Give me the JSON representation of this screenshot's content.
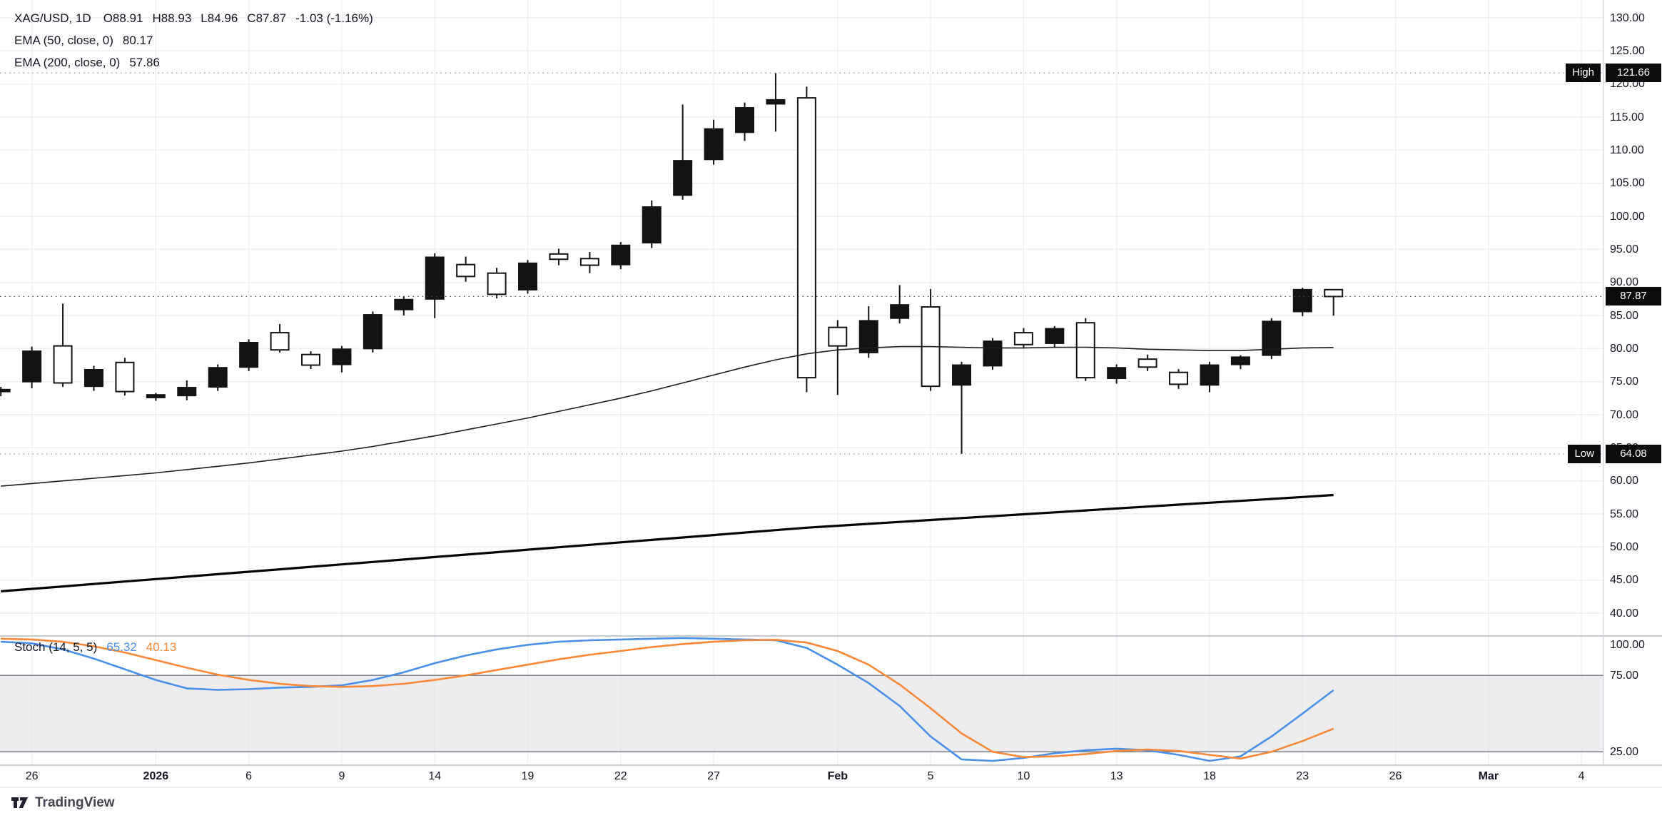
{
  "header": {
    "symbol": "XAG/USD, 1D",
    "ohlc": [
      "O88.91",
      "H88.93",
      "L84.96",
      "C87.87"
    ],
    "change": "-1.03 (-1.16%)",
    "ema50_label": "EMA (50, close, 0)",
    "ema50_value": "80.17",
    "ema200_label": "EMA (200, close, 0)",
    "ema200_value": "57.86"
  },
  "stoch_legend": {
    "label": "Stoch (14, 5, 5)",
    "k_value": "65.32",
    "d_value": "40.13"
  },
  "axis": {
    "price_ticks": [
      130,
      125,
      120,
      115,
      110,
      105,
      100,
      95,
      90,
      85,
      80,
      75,
      70,
      65,
      60,
      55,
      50,
      45,
      40
    ],
    "stoch_ticks": [
      100,
      75,
      25
    ],
    "time_ticks": [
      {
        "label": "26",
        "bar": 1
      },
      {
        "label": "2026",
        "bar": 5,
        "major": true
      },
      {
        "label": "6",
        "bar": 8
      },
      {
        "label": "9",
        "bar": 11
      },
      {
        "label": "14",
        "bar": 14
      },
      {
        "label": "19",
        "bar": 17
      },
      {
        "label": "22",
        "bar": 20
      },
      {
        "label": "27",
        "bar": 23
      },
      {
        "label": "Feb",
        "bar": 27,
        "major": true
      },
      {
        "label": "5",
        "bar": 30
      },
      {
        "label": "10",
        "bar": 33
      },
      {
        "label": "13",
        "bar": 36
      },
      {
        "label": "18",
        "bar": 39
      },
      {
        "label": "23",
        "bar": 42
      },
      {
        "label": "26",
        "bar": 45
      },
      {
        "label": "Mar",
        "bar": 48,
        "major": true
      },
      {
        "label": "4",
        "bar": 51
      }
    ],
    "high_badge": {
      "label": "High",
      "value": "121.66"
    },
    "low_badge": {
      "label": "Low",
      "value": "64.08"
    },
    "last_badge": {
      "value": "87.87"
    }
  },
  "footer": {
    "brand": "TradingView"
  },
  "chart_data": {
    "type": "candlestick",
    "symbol": "XAG/USD",
    "interval": "1D",
    "up_color": "#131313",
    "down_fill": "#ffffff",
    "levels": {
      "high": 121.66,
      "low": 64.08,
      "last": 87.87
    },
    "candles": [
      {
        "d": "Dec 25",
        "o": 73.5,
        "h": 74.2,
        "l": 72.8,
        "c": 73.8
      },
      {
        "d": "Dec 26",
        "o": 75.0,
        "h": 80.3,
        "l": 74.0,
        "c": 79.6
      },
      {
        "d": "Dec 29",
        "o": 80.4,
        "h": 86.8,
        "l": 74.2,
        "c": 74.8
      },
      {
        "d": "Dec 30",
        "o": 74.3,
        "h": 77.4,
        "l": 73.6,
        "c": 76.8
      },
      {
        "d": "Dec 31",
        "o": 77.9,
        "h": 78.6,
        "l": 72.9,
        "c": 73.5
      },
      {
        "d": "Jan 1",
        "o": 72.6,
        "h": 73.3,
        "l": 72.1,
        "c": 73.0
      },
      {
        "d": "Jan 2",
        "o": 72.9,
        "h": 75.2,
        "l": 72.2,
        "c": 74.1
      },
      {
        "d": "Jan 5",
        "o": 74.2,
        "h": 77.6,
        "l": 73.6,
        "c": 77.1
      },
      {
        "d": "Jan 6",
        "o": 77.2,
        "h": 81.4,
        "l": 76.6,
        "c": 80.9
      },
      {
        "d": "Jan 7",
        "o": 82.4,
        "h": 83.7,
        "l": 79.4,
        "c": 79.8
      },
      {
        "d": "Jan 8",
        "o": 79.1,
        "h": 79.6,
        "l": 76.9,
        "c": 77.5
      },
      {
        "d": "Jan 9",
        "o": 77.6,
        "h": 80.4,
        "l": 76.4,
        "c": 79.9
      },
      {
        "d": "Jan 12",
        "o": 80.0,
        "h": 85.6,
        "l": 79.4,
        "c": 85.1
      },
      {
        "d": "Jan 13",
        "o": 85.9,
        "h": 87.9,
        "l": 85.0,
        "c": 87.4
      },
      {
        "d": "Jan 14",
        "o": 87.5,
        "h": 94.4,
        "l": 84.6,
        "c": 93.8
      },
      {
        "d": "Jan 15",
        "o": 92.7,
        "h": 93.9,
        "l": 90.1,
        "c": 90.9
      },
      {
        "d": "Jan 16",
        "o": 91.4,
        "h": 92.2,
        "l": 87.6,
        "c": 88.2
      },
      {
        "d": "Jan 19",
        "o": 88.9,
        "h": 93.4,
        "l": 88.3,
        "c": 92.9
      },
      {
        "d": "Jan 20",
        "o": 94.3,
        "h": 95.1,
        "l": 92.6,
        "c": 93.5
      },
      {
        "d": "Jan 21",
        "o": 93.6,
        "h": 94.6,
        "l": 91.4,
        "c": 92.6
      },
      {
        "d": "Jan 22",
        "o": 92.7,
        "h": 96.1,
        "l": 92.0,
        "c": 95.6
      },
      {
        "d": "Jan 23",
        "o": 96.0,
        "h": 102.4,
        "l": 95.2,
        "c": 101.4
      },
      {
        "d": "Jan 26",
        "o": 103.2,
        "h": 116.9,
        "l": 102.5,
        "c": 108.4
      },
      {
        "d": "Jan 27",
        "o": 108.6,
        "h": 114.6,
        "l": 107.8,
        "c": 113.2
      },
      {
        "d": "Jan 28",
        "o": 112.7,
        "h": 117.2,
        "l": 111.4,
        "c": 116.4
      },
      {
        "d": "Jan 29",
        "o": 117.0,
        "h": 121.66,
        "l": 112.8,
        "c": 117.6
      },
      {
        "d": "Jan 30",
        "o": 117.9,
        "h": 119.6,
        "l": 73.4,
        "c": 75.6
      },
      {
        "d": "Feb 2",
        "o": 83.2,
        "h": 84.3,
        "l": 73.0,
        "c": 80.4
      },
      {
        "d": "Feb 3",
        "o": 79.4,
        "h": 86.4,
        "l": 78.6,
        "c": 84.2
      },
      {
        "d": "Feb 4",
        "o": 84.6,
        "h": 89.6,
        "l": 83.8,
        "c": 86.6
      },
      {
        "d": "Feb 5",
        "o": 86.3,
        "h": 89.0,
        "l": 73.6,
        "c": 74.3
      },
      {
        "d": "Feb 6",
        "o": 74.5,
        "h": 78.0,
        "l": 64.08,
        "c": 77.5
      },
      {
        "d": "Feb 9",
        "o": 77.4,
        "h": 81.6,
        "l": 76.8,
        "c": 81.1
      },
      {
        "d": "Feb 10",
        "o": 82.4,
        "h": 83.1,
        "l": 80.0,
        "c": 80.6
      },
      {
        "d": "Feb 11",
        "o": 80.8,
        "h": 83.4,
        "l": 80.1,
        "c": 83.0
      },
      {
        "d": "Feb 12",
        "o": 83.9,
        "h": 84.6,
        "l": 75.1,
        "c": 75.6
      },
      {
        "d": "Feb 13",
        "o": 75.5,
        "h": 77.6,
        "l": 74.7,
        "c": 77.1
      },
      {
        "d": "Feb 16",
        "o": 78.4,
        "h": 79.1,
        "l": 76.6,
        "c": 77.2
      },
      {
        "d": "Feb 17",
        "o": 76.4,
        "h": 76.9,
        "l": 73.9,
        "c": 74.6
      },
      {
        "d": "Feb 18",
        "o": 74.5,
        "h": 78.0,
        "l": 73.4,
        "c": 77.5
      },
      {
        "d": "Feb 19",
        "o": 77.6,
        "h": 79.0,
        "l": 76.9,
        "c": 78.7
      },
      {
        "d": "Feb 20",
        "o": 79.0,
        "h": 84.6,
        "l": 78.4,
        "c": 84.1
      },
      {
        "d": "Feb 23",
        "o": 85.6,
        "h": 89.2,
        "l": 84.9,
        "c": 88.9
      },
      {
        "d": "Feb 24",
        "o": 88.91,
        "h": 88.93,
        "l": 84.96,
        "c": 87.87
      }
    ],
    "overlays": [
      {
        "name": "EMA 50",
        "color": "#1c1c1c",
        "width": 1.6,
        "values": [
          59.2,
          59.6,
          60.0,
          60.4,
          60.8,
          61.2,
          61.7,
          62.2,
          62.7,
          63.3,
          63.9,
          64.5,
          65.2,
          66.0,
          66.8,
          67.7,
          68.6,
          69.5,
          70.5,
          71.5,
          72.5,
          73.6,
          74.8,
          76.0,
          77.2,
          78.3,
          79.2,
          79.8,
          80.1,
          80.3,
          80.3,
          80.2,
          80.1,
          80.1,
          80.2,
          80.2,
          80.1,
          79.9,
          79.8,
          79.7,
          79.7,
          79.9,
          80.1,
          80.17
        ]
      },
      {
        "name": "EMA 200",
        "color": "#050505",
        "width": 3.2,
        "values": [
          43.3,
          43.67,
          44.04,
          44.41,
          44.78,
          45.15,
          45.52,
          45.89,
          46.26,
          46.63,
          47.0,
          47.37,
          47.74,
          48.11,
          48.48,
          48.85,
          49.22,
          49.59,
          49.96,
          50.33,
          50.7,
          51.07,
          51.44,
          51.81,
          52.18,
          52.55,
          52.92,
          53.21,
          53.5,
          53.79,
          54.08,
          54.37,
          54.66,
          54.95,
          55.24,
          55.53,
          55.82,
          56.11,
          56.4,
          56.69,
          56.98,
          57.27,
          57.56,
          57.86
        ]
      }
    ],
    "stochastic": {
      "label": "Stoch (14, 5, 5)",
      "bands": [
        75,
        25
      ],
      "k": {
        "color": "#4a90e8",
        "values": [
          97,
          96,
          92,
          86,
          79,
          72,
          66.5,
          65.5,
          66,
          67,
          67.5,
          68.5,
          72,
          77,
          83,
          88,
          92,
          95,
          97,
          98,
          98.5,
          99,
          99.5,
          99,
          98.5,
          98,
          93,
          82,
          70,
          55,
          35,
          20,
          19,
          21,
          24,
          26,
          27,
          26,
          23,
          19,
          22,
          35,
          50,
          65.32
        ]
      },
      "d": {
        "color": "#f98839",
        "values": [
          99,
          98.5,
          97,
          94,
          90,
          85,
          80,
          75.5,
          72,
          69.5,
          68,
          67.5,
          68,
          69.5,
          72,
          75,
          78.5,
          82,
          85.5,
          88.5,
          91,
          93.5,
          95.5,
          97,
          98,
          98.3,
          96.5,
          91,
          82,
          69,
          53.5,
          37,
          25,
          21.5,
          22,
          23.5,
          25.5,
          26.5,
          25.5,
          23,
          20.5,
          25,
          32,
          40.13
        ]
      }
    }
  }
}
